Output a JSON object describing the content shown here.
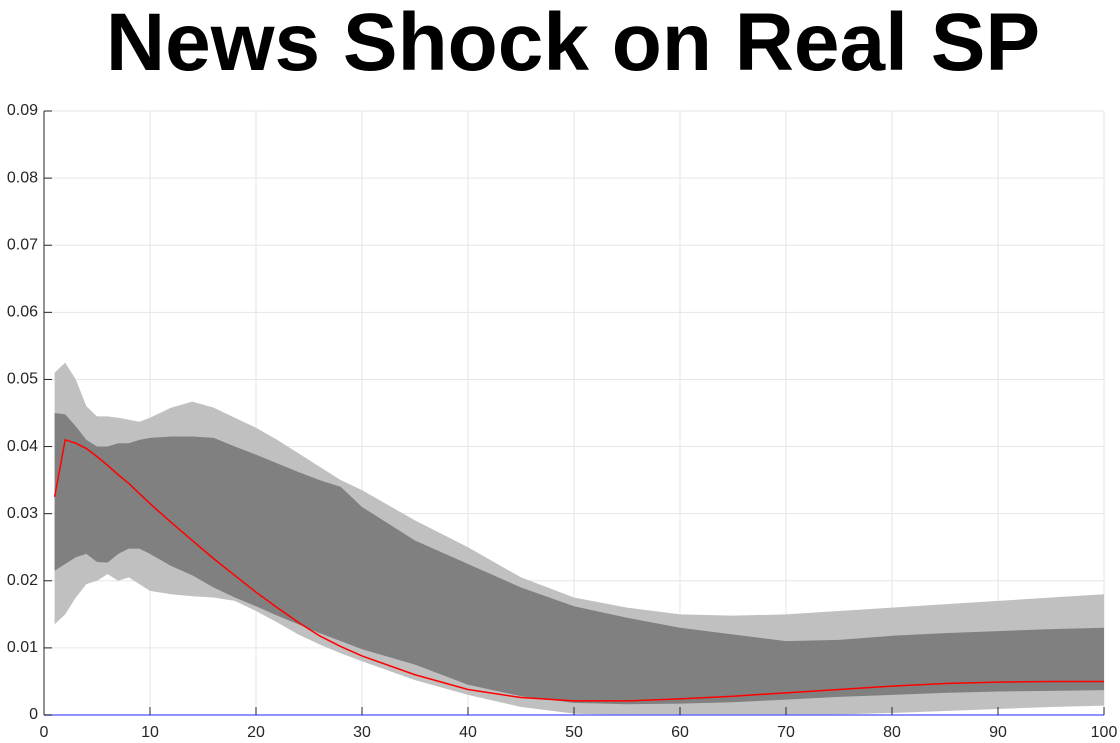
{
  "chart_data": {
    "type": "line",
    "title": "News Shock on Real SP",
    "x": [
      1,
      2,
      3,
      4,
      5,
      6,
      7,
      8,
      9,
      10,
      12,
      14,
      16,
      18,
      20,
      22,
      24,
      26,
      28,
      30,
      35,
      40,
      45,
      50,
      55,
      60,
      65,
      70,
      75,
      80,
      85,
      90,
      95,
      100
    ],
    "bands": [
      {
        "color": "#c0c0c0",
        "upper": [
          0.051,
          0.0525,
          0.05,
          0.046,
          0.0445,
          0.0445,
          0.0443,
          0.044,
          0.0437,
          0.0443,
          0.0458,
          0.0467,
          0.0458,
          0.0443,
          0.0428,
          0.041,
          0.039,
          0.037,
          0.035,
          0.0335,
          0.029,
          0.025,
          0.0205,
          0.0175,
          0.016,
          0.015,
          0.0148,
          0.015,
          0.0155,
          0.016,
          0.0165,
          0.017,
          0.0175,
          0.018
        ],
        "lower": [
          0.0135,
          0.015,
          0.0175,
          0.0195,
          0.02,
          0.021,
          0.02,
          0.0205,
          0.0195,
          0.0185,
          0.018,
          0.0177,
          0.0175,
          0.017,
          0.0155,
          0.0138,
          0.012,
          0.0105,
          0.0092,
          0.008,
          0.0052,
          0.003,
          0.0012,
          0.0002,
          0,
          0,
          0,
          0,
          0.0001,
          0.0003,
          0.0006,
          0.0009,
          0.0012,
          0.0014
        ]
      },
      {
        "color": "#808080",
        "upper": [
          0.045,
          0.0448,
          0.043,
          0.041,
          0.04,
          0.04,
          0.0405,
          0.0405,
          0.041,
          0.0413,
          0.0415,
          0.0415,
          0.0413,
          0.04,
          0.0388,
          0.0375,
          0.0362,
          0.035,
          0.034,
          0.031,
          0.026,
          0.0225,
          0.019,
          0.0162,
          0.0145,
          0.013,
          0.012,
          0.011,
          0.0112,
          0.0118,
          0.0122,
          0.0125,
          0.0128,
          0.013
        ],
        "lower": [
          0.0215,
          0.0225,
          0.0235,
          0.024,
          0.0228,
          0.0227,
          0.024,
          0.0248,
          0.0248,
          0.024,
          0.0222,
          0.0208,
          0.019,
          0.0175,
          0.0162,
          0.0148,
          0.0135,
          0.0122,
          0.011,
          0.0098,
          0.0075,
          0.0045,
          0.0028,
          0.0018,
          0.0016,
          0.0017,
          0.0019,
          0.0023,
          0.0027,
          0.003,
          0.0033,
          0.0035,
          0.0036,
          0.0037
        ]
      }
    ],
    "line": {
      "color": "#ff0000",
      "values": [
        0.0325,
        0.041,
        0.0405,
        0.0397,
        0.0385,
        0.0372,
        0.0358,
        0.0345,
        0.033,
        0.0315,
        0.0287,
        0.026,
        0.0233,
        0.0208,
        0.0183,
        0.016,
        0.0138,
        0.0118,
        0.0102,
        0.0088,
        0.006,
        0.0038,
        0.0026,
        0.0021,
        0.0021,
        0.0024,
        0.0028,
        0.0033,
        0.0038,
        0.0043,
        0.0047,
        0.0049,
        0.005,
        0.005
      ]
    },
    "reference_line": {
      "value": 0,
      "color": "#6b6bff"
    },
    "xlim": [
      0,
      100
    ],
    "xticks": [
      0,
      10,
      20,
      30,
      40,
      50,
      60,
      70,
      80,
      90,
      100
    ],
    "ylim": [
      0,
      0.09
    ],
    "yticks": [
      0,
      0.01,
      0.02,
      0.03,
      0.04,
      0.05,
      0.06,
      0.07,
      0.08,
      0.09
    ],
    "grid": true
  }
}
